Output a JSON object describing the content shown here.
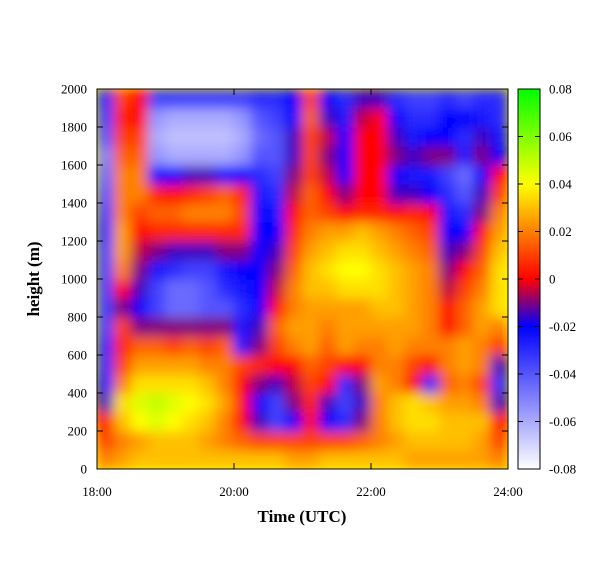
{
  "chart_data": {
    "type": "heatmap",
    "title": "",
    "xlabel": "Time (UTC)",
    "ylabel": "height (m)",
    "x_ticks": [
      "18:00",
      "20:00",
      "22:00",
      "24:00"
    ],
    "y_ticks": [
      "0",
      "200",
      "400",
      "600",
      "800",
      "1000",
      "1200",
      "1400",
      "1600",
      "1800",
      "2000"
    ],
    "xlim_hours": [
      18,
      24
    ],
    "ylim": [
      0,
      2000
    ],
    "colorbar": {
      "range": [
        -0.08,
        0.08
      ],
      "ticks": [
        "-0.08",
        "-0.06",
        "-0.04",
        "-0.02",
        "0",
        "0.02",
        "0.04",
        "0.06",
        "0.08"
      ],
      "colors": [
        "#ffffff",
        "#0000ff",
        "#ff0000",
        "#ffff00",
        "#00ff00"
      ]
    },
    "cell_size": {
      "hours": 0.25,
      "meters": 100
    },
    "z": [
      [
        0.02,
        0.025,
        0.03,
        0.03,
        0.03,
        0.03,
        0.03,
        0.03,
        0.03,
        0.03,
        0.03,
        0.025,
        0.025,
        0.03,
        0.03,
        0.03,
        0.03,
        0.03,
        0.025,
        0.025,
        0.025,
        0.025,
        0.025,
        0.02
      ],
      [
        0.01,
        0.02,
        0.025,
        0.03,
        0.03,
        0.03,
        0.025,
        0.02,
        0.015,
        0.01,
        0.01,
        0.01,
        0.01,
        0.01,
        0.01,
        0.015,
        0.02,
        0.025,
        0.03,
        0.03,
        0.03,
        0.03,
        0.025,
        0.01
      ],
      [
        0.0,
        0.03,
        0.04,
        0.045,
        0.04,
        0.035,
        0.03,
        0.02,
        0.0,
        -0.015,
        -0.035,
        -0.02,
        0.0,
        -0.02,
        -0.03,
        -0.01,
        0.02,
        0.03,
        0.035,
        0.035,
        0.03,
        0.03,
        0.03,
        0.0
      ],
      [
        -0.015,
        0.035,
        0.045,
        0.05,
        0.045,
        0.04,
        0.035,
        0.025,
        0.0,
        -0.02,
        -0.035,
        -0.01,
        0.005,
        -0.015,
        -0.035,
        -0.015,
        0.02,
        0.03,
        0.035,
        0.03,
        0.025,
        0.025,
        0.02,
        -0.015
      ],
      [
        -0.025,
        0.02,
        0.035,
        0.035,
        0.035,
        0.035,
        0.03,
        0.02,
        0.0,
        -0.01,
        -0.015,
        -0.005,
        0.01,
        0.0,
        -0.03,
        -0.01,
        0.025,
        0.02,
        0.0,
        -0.03,
        0.015,
        0.02,
        0.01,
        -0.03
      ],
      [
        -0.03,
        0.01,
        0.025,
        0.025,
        0.025,
        0.025,
        0.02,
        0.02,
        0.01,
        0.005,
        0.0,
        0.0,
        0.015,
        0.01,
        0.0,
        0.0,
        0.02,
        0.02,
        0.01,
        0.0,
        0.02,
        0.025,
        0.02,
        -0.015
      ],
      [
        -0.03,
        0.005,
        0.015,
        0.015,
        0.01,
        0.015,
        0.01,
        0.015,
        -0.025,
        -0.01,
        0.01,
        0.02,
        0.025,
        0.015,
        0.025,
        0.02,
        0.02,
        0.025,
        0.02,
        0.02,
        0.02,
        0.025,
        0.02,
        0.01
      ],
      [
        -0.035,
        0.01,
        -0.01,
        -0.01,
        -0.01,
        -0.01,
        -0.01,
        -0.01,
        -0.025,
        -0.015,
        0.015,
        0.025,
        0.025,
        0.02,
        0.025,
        0.025,
        0.025,
        0.025,
        0.025,
        0.02,
        0.0,
        0.015,
        0.025,
        0.02
      ],
      [
        -0.035,
        -0.01,
        -0.02,
        -0.035,
        -0.045,
        -0.045,
        -0.04,
        -0.04,
        -0.03,
        -0.02,
        0.0,
        0.02,
        0.025,
        0.025,
        0.025,
        0.025,
        0.03,
        0.03,
        0.025,
        0.02,
        0.0,
        0.015,
        0.025,
        0.035
      ],
      [
        -0.035,
        0.0,
        -0.015,
        -0.035,
        -0.045,
        -0.045,
        -0.04,
        -0.03,
        -0.025,
        -0.02,
        -0.005,
        0.02,
        0.03,
        0.03,
        0.035,
        0.035,
        0.035,
        0.03,
        0.025,
        0.02,
        -0.005,
        0.01,
        0.02,
        0.035
      ],
      [
        -0.035,
        0.02,
        -0.01,
        -0.025,
        -0.03,
        -0.035,
        -0.035,
        -0.025,
        -0.02,
        -0.02,
        -0.01,
        0.015,
        0.03,
        0.035,
        0.04,
        0.04,
        0.035,
        0.03,
        0.025,
        0.02,
        -0.01,
        0.0,
        0.015,
        0.035
      ],
      [
        -0.035,
        0.025,
        -0.005,
        -0.01,
        -0.015,
        -0.015,
        -0.015,
        -0.01,
        -0.01,
        -0.02,
        -0.015,
        0.01,
        0.025,
        0.03,
        0.035,
        0.035,
        0.03,
        0.025,
        0.02,
        0.015,
        -0.015,
        -0.01,
        0.01,
        0.03
      ],
      [
        -0.03,
        0.025,
        0.0,
        0.005,
        0.005,
        0.005,
        0.005,
        0.005,
        0.005,
        -0.02,
        -0.02,
        0.005,
        0.02,
        0.025,
        0.025,
        0.03,
        0.025,
        0.02,
        0.015,
        0.01,
        -0.02,
        -0.02,
        0.0,
        0.025
      ],
      [
        -0.035,
        0.02,
        0.01,
        0.015,
        0.015,
        0.02,
        0.02,
        0.02,
        0.01,
        -0.02,
        -0.025,
        0.0,
        0.015,
        0.01,
        0.0,
        0.005,
        0.005,
        0.0,
        0.005,
        0.0,
        -0.025,
        -0.03,
        -0.01,
        0.02
      ],
      [
        -0.04,
        0.02,
        0.02,
        0.005,
        0.0,
        0.005,
        0.01,
        0.015,
        0.005,
        -0.025,
        -0.03,
        -0.005,
        0.015,
        0.0,
        -0.01,
        0.0,
        0.0,
        -0.015,
        -0.015,
        -0.02,
        -0.03,
        -0.04,
        -0.015,
        0.01
      ],
      [
        -0.045,
        0.02,
        0.02,
        -0.02,
        -0.02,
        -0.015,
        -0.015,
        -0.02,
        -0.02,
        -0.03,
        -0.035,
        -0.01,
        0.01,
        -0.005,
        -0.02,
        0.0,
        0.0,
        -0.02,
        -0.025,
        -0.025,
        -0.035,
        -0.045,
        -0.02,
        0.0
      ],
      [
        -0.05,
        0.015,
        0.015,
        -0.055,
        -0.06,
        -0.06,
        -0.06,
        -0.06,
        -0.055,
        -0.04,
        -0.04,
        -0.015,
        0.01,
        -0.01,
        -0.02,
        0.0,
        0.0,
        -0.01,
        -0.015,
        -0.01,
        -0.01,
        -0.025,
        -0.01,
        -0.02
      ],
      [
        -0.04,
        0.01,
        0.01,
        -0.06,
        -0.065,
        -0.065,
        -0.065,
        -0.065,
        -0.06,
        -0.045,
        -0.04,
        -0.015,
        0.01,
        -0.005,
        -0.02,
        0.0,
        0.0,
        -0.015,
        -0.025,
        -0.02,
        -0.02,
        -0.03,
        -0.015,
        -0.025
      ],
      [
        -0.035,
        0.005,
        0.0,
        -0.055,
        -0.06,
        -0.06,
        -0.06,
        -0.06,
        -0.055,
        -0.04,
        -0.035,
        -0.02,
        0.015,
        -0.015,
        -0.025,
        -0.005,
        0.0,
        -0.02,
        -0.03,
        -0.03,
        -0.02,
        -0.02,
        -0.025,
        -0.03
      ],
      [
        -0.03,
        0.01,
        0.0,
        -0.035,
        -0.035,
        -0.035,
        -0.035,
        -0.035,
        -0.035,
        -0.03,
        -0.03,
        -0.02,
        0.01,
        -0.02,
        -0.03,
        -0.015,
        -0.015,
        -0.03,
        -0.035,
        -0.035,
        -0.03,
        -0.035,
        -0.03,
        -0.03
      ]
    ]
  }
}
